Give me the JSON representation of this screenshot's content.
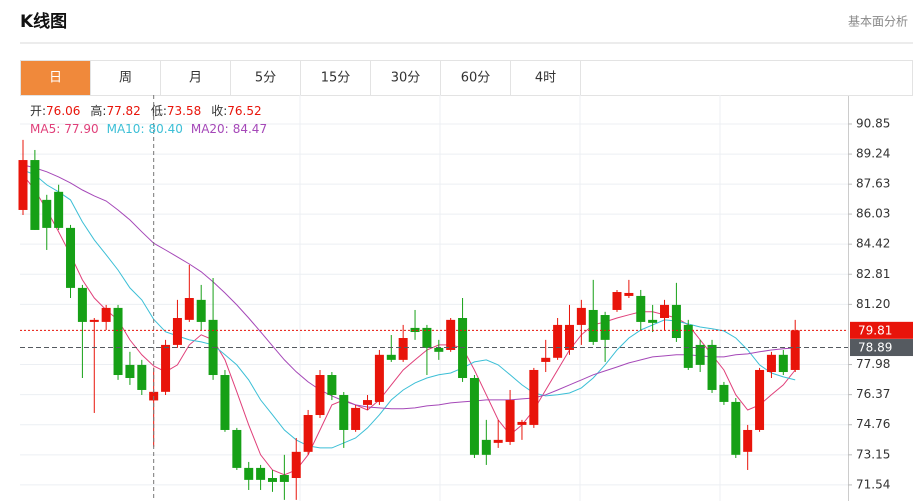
{
  "header": {
    "title": "K线图",
    "link": "基本面分析"
  },
  "tabs": [
    "日",
    "周",
    "月",
    "5分",
    "15分",
    "30分",
    "60分",
    "4时"
  ],
  "chart_data": {
    "type": "candlestick",
    "up_color": "#e8140a",
    "down_color": "#16a016",
    "ylim": [
      70.68,
      92.4
    ],
    "yticks": [
      90.85,
      89.24,
      87.63,
      86.03,
      84.42,
      82.81,
      {
        "value": 81.2,
        "label": "81.20"
      },
      77.98,
      76.37,
      74.76,
      73.15,
      71.54
    ],
    "grid": true,
    "crosshair_index": 11,
    "ohlc_info": [
      {
        "label": "开:",
        "value": 76.06
      },
      {
        "label": "高:",
        "value": 77.82
      },
      {
        "label": "低:",
        "value": 73.58
      },
      {
        "label": "收:",
        "value": 76.52
      }
    ],
    "price_lines": [
      {
        "value": 79.81,
        "color": "#e8140a"
      },
      {
        "value": 78.89,
        "color": "#555a60"
      }
    ],
    "open": [
      86.25,
      88.92,
      86.79,
      87.22,
      85.29,
      82.08,
      80.26,
      80.26,
      81.01,
      77.96,
      77.96,
      76.06,
      76.52,
      79.03,
      80.37,
      81.44,
      80.37,
      77.42,
      74.48,
      72.45,
      72.45,
      71.91,
      72.07,
      71.91,
      73.31,
      75.28,
      77.42,
      76.35,
      74.48,
      75.82,
      75.98,
      78.5,
      78.23,
      79.94,
      79.94,
      78.87,
      78.76,
      80.47,
      77.26,
      73.95,
      73.79,
      73.84,
      74.75,
      74.75,
      78.12,
      78.34,
      78.76,
      80.1,
      80.9,
      80.63,
      80.9,
      81.65,
      81.65,
      80.37,
      80.47,
      81.17,
      80.1,
      79.03,
      79.03,
      76.89,
      75.98,
      73.31,
      74.48,
      77.58,
      78.5,
      77.69
    ],
    "high": [
      90.0,
      89.46,
      87.06,
      87.6,
      85.45,
      82.24,
      80.47,
      81.17,
      81.17,
      78.66,
      78.23,
      77.82,
      79.3,
      81.44,
      83.31,
      82.24,
      82.61,
      77.69,
      74.59,
      72.77,
      72.61,
      72.34,
      73.15,
      74.05,
      75.55,
      77.69,
      77.58,
      76.51,
      75.82,
      76.35,
      78.76,
      79.56,
      80.1,
      80.9,
      80.1,
      79.3,
      80.47,
      81.54,
      77.42,
      75.02,
      75.02,
      76.62,
      75.02,
      77.8,
      79.3,
      80.47,
      81.17,
      81.44,
      82.51,
      80.8,
      81.97,
      82.51,
      81.97,
      81.17,
      81.44,
      82.35,
      80.37,
      79.3,
      79.3,
      77.05,
      76.19,
      74.75,
      77.8,
      78.66,
      78.76,
      80.37
    ],
    "low": [
      85.98,
      85.18,
      84.11,
      85.18,
      81.54,
      77.26,
      75.39,
      79.83,
      77.16,
      76.89,
      76.35,
      73.58,
      76.35,
      78.87,
      80.26,
      79.83,
      77.16,
      74.38,
      72.34,
      71.27,
      71.27,
      71.17,
      70.74,
      70.74,
      73.15,
      75.12,
      76.08,
      73.52,
      74.38,
      75.55,
      75.82,
      78.12,
      78.12,
      79.3,
      77.42,
      78.23,
      78.66,
      77.05,
      72.98,
      72.61,
      73.52,
      73.68,
      73.95,
      74.59,
      77.58,
      78.23,
      78.5,
      79.03,
      79.03,
      78.12,
      80.8,
      81.54,
      79.83,
      79.72,
      79.83,
      79.19,
      77.69,
      77.58,
      76.46,
      75.82,
      72.98,
      72.34,
      74.38,
      77.26,
      77.42,
      77.58
    ],
    "close": [
      88.92,
      85.18,
      85.29,
      85.29,
      82.08,
      80.26,
      80.37,
      81.01,
      77.42,
      77.26,
      76.62,
      76.52,
      79.03,
      80.47,
      81.54,
      80.26,
      77.42,
      74.48,
      72.45,
      71.81,
      71.81,
      71.7,
      71.7,
      73.31,
      75.28,
      77.42,
      76.35,
      74.48,
      75.66,
      76.08,
      78.5,
      78.23,
      79.4,
      79.72,
      78.87,
      78.66,
      80.37,
      77.26,
      73.15,
      73.15,
      73.95,
      76.08,
      74.91,
      77.69,
      78.34,
      80.1,
      80.1,
      81.01,
      79.19,
      79.3,
      81.86,
      81.81,
      80.26,
      80.21,
      81.17,
      79.4,
      77.8,
      77.96,
      76.62,
      75.98,
      73.15,
      74.48,
      77.69,
      78.5,
      77.58,
      79.81
    ],
    "series": [
      {
        "name": "MA5:",
        "color": "#e0407a",
        "current": {
          "value": 77.9,
          "label": "77.90"
        },
        "values": [
          88.13,
          87.32,
          86.25,
          85.08,
          83.85,
          82.51,
          81.54,
          80.9,
          80.37,
          79.3,
          78.5,
          77.9,
          77.59,
          77.96,
          79.03,
          79.57,
          79.3,
          78.23,
          76.52,
          74.75,
          73.15,
          72.34,
          72.08,
          72.34,
          73.15,
          74.48,
          75.82,
          76.09,
          75.82,
          75.55,
          76.09,
          76.89,
          77.69,
          78.23,
          78.76,
          79.03,
          79.03,
          78.87,
          77.69,
          76.36,
          75.02,
          74.22,
          74.75,
          75.55,
          76.62,
          77.69,
          78.76,
          79.57,
          80.1,
          80.26,
          80.47,
          80.64,
          80.8,
          80.8,
          80.64,
          80.47,
          80.1,
          79.3,
          78.5,
          77.69,
          76.36,
          75.55,
          75.82,
          76.36,
          76.89,
          77.69
        ]
      },
      {
        "name": "MA10:",
        "color": "#3cbfd6",
        "current": {
          "value": 80.4,
          "label": "80.40"
        },
        "values": [
          88.39,
          88.13,
          87.59,
          87.22,
          86.79,
          85.61,
          84.65,
          83.85,
          83.04,
          82.08,
          81.44,
          80.4,
          79.73,
          79.51,
          79.3,
          79.19,
          79.03,
          78.5,
          77.96,
          77.16,
          76.09,
          75.29,
          74.48,
          73.95,
          73.63,
          73.52,
          73.52,
          73.79,
          74.05,
          74.59,
          75.29,
          76.09,
          76.62,
          77.0,
          77.26,
          77.43,
          77.53,
          77.8,
          78.12,
          78.23,
          77.96,
          77.43,
          76.89,
          76.46,
          76.3,
          76.36,
          76.46,
          76.73,
          77.26,
          77.96,
          78.76,
          79.4,
          79.83,
          80.1,
          80.37,
          80.31,
          80.15,
          79.99,
          79.89,
          79.78,
          79.4,
          78.76,
          77.96,
          77.53,
          77.32,
          77.16
        ]
      },
      {
        "name": "MA20:",
        "color": "#a548b8",
        "current": {
          "value": 84.47,
          "label": "84.47"
        },
        "values": [
          88.66,
          88.5,
          88.29,
          88.02,
          87.7,
          87.32,
          87.0,
          86.73,
          86.25,
          85.72,
          85.08,
          84.47,
          84.11,
          83.74,
          83.36,
          82.94,
          82.4,
          81.81,
          81.17,
          80.47,
          79.73,
          78.98,
          78.23,
          77.59,
          77.05,
          76.62,
          76.3,
          76.03,
          75.82,
          75.71,
          75.66,
          75.61,
          75.61,
          75.66,
          75.77,
          75.82,
          75.93,
          75.98,
          76.03,
          76.09,
          76.09,
          76.09,
          76.14,
          76.19,
          76.36,
          76.62,
          76.89,
          77.16,
          77.43,
          77.64,
          77.85,
          78.07,
          78.23,
          78.39,
          78.44,
          78.5,
          78.5,
          78.44,
          78.39,
          78.39,
          78.5,
          78.55,
          78.66,
          78.76,
          78.82,
          78.87
        ]
      }
    ]
  }
}
